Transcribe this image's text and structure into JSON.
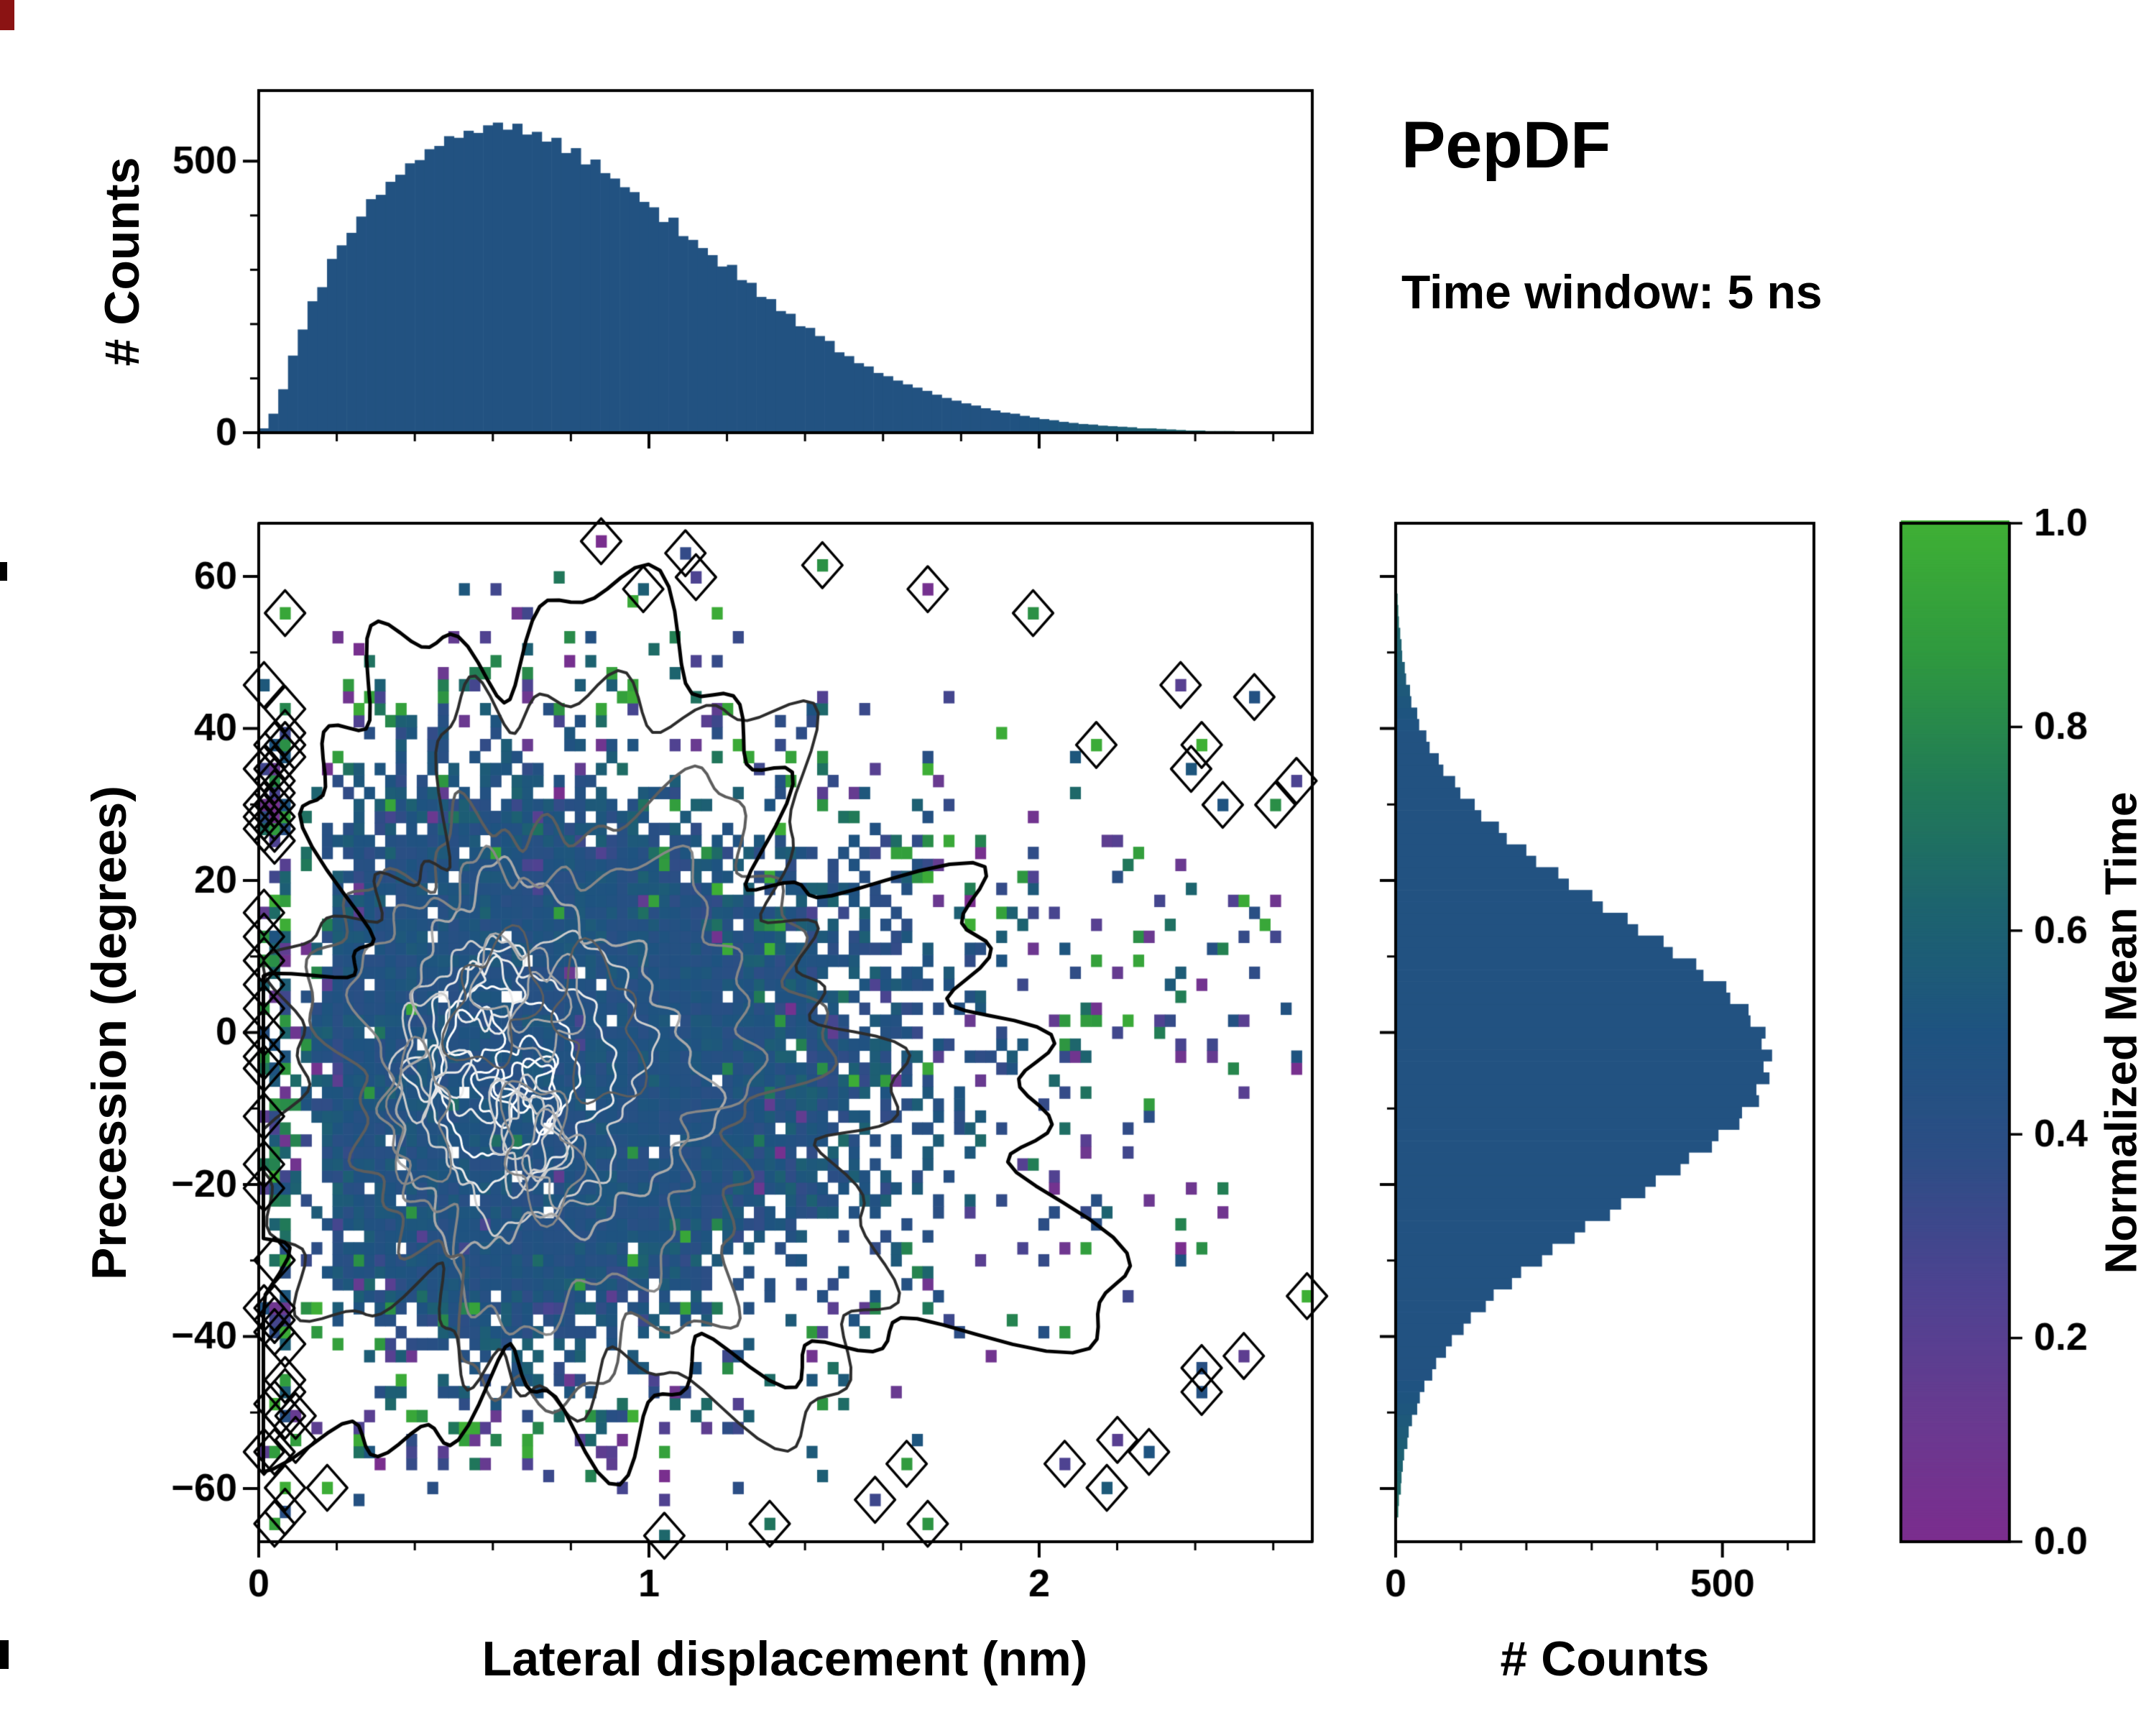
{
  "title": "PepDF",
  "subtitle": "Time window: 5 ns",
  "colors": {
    "histogram_bar": "#1e5280",
    "frame": "#000000",
    "text": "#000000",
    "background": "#ffffff"
  },
  "chart_data": [
    {
      "id": "top_histogram",
      "type": "bar",
      "title": "",
      "xlabel": "Lateral displacement (nm)",
      "ylabel": "# Counts",
      "xlim": [
        0,
        2.7
      ],
      "ylim": [
        0,
        630
      ],
      "xticks": [
        0,
        1,
        2
      ],
      "yticks": [
        0,
        500
      ],
      "bin_start": 0,
      "bin_width": 0.025,
      "values": [
        8,
        35,
        80,
        142,
        190,
        242,
        268,
        320,
        345,
        368,
        398,
        430,
        438,
        462,
        475,
        496,
        502,
        522,
        528,
        546,
        543,
        556,
        552,
        566,
        571,
        558,
        569,
        549,
        554,
        536,
        543,
        515,
        524,
        494,
        503,
        478,
        468,
        452,
        443,
        425,
        415,
        388,
        396,
        362,
        355,
        340,
        327,
        306,
        309,
        281,
        276,
        250,
        246,
        224,
        219,
        196,
        193,
        178,
        169,
        148,
        141,
        128,
        122,
        110,
        104,
        96,
        89,
        83,
        77,
        70,
        64,
        59,
        54,
        50,
        45,
        41,
        37,
        35,
        31,
        28,
        25,
        23,
        20,
        18,
        16,
        15,
        13,
        12,
        11,
        10,
        8,
        8,
        7,
        6,
        5,
        4,
        4,
        3,
        3,
        3,
        2,
        2,
        2,
        2,
        1,
        1,
        1,
        1
      ]
    },
    {
      "id": "joint_heatmap",
      "type": "heatmap",
      "xlabel": "Lateral displacement (nm)",
      "ylabel": "Precession (degrees)",
      "xlim": [
        0,
        2.7
      ],
      "ylim": [
        -67,
        67
      ],
      "xticks": [
        0,
        1,
        2
      ],
      "yticks": [
        -60,
        -40,
        -20,
        0,
        20,
        40,
        60
      ],
      "center": [
        0.62,
        -5
      ],
      "spread": [
        0.55,
        23
      ],
      "grid": [
        100,
        85
      ],
      "seed": 1234,
      "mean_value": 0.47,
      "colormap": [
        [
          0.0,
          "#7b2d8e"
        ],
        [
          0.12,
          "#693a90"
        ],
        [
          0.25,
          "#4d4391"
        ],
        [
          0.38,
          "#2c4e85"
        ],
        [
          0.5,
          "#1e5380"
        ],
        [
          0.62,
          "#1d636f"
        ],
        [
          0.74,
          "#217a57"
        ],
        [
          0.87,
          "#2f993f"
        ],
        [
          1.0,
          "#3fb035"
        ]
      ],
      "contour_colors": [
        "#ffffff",
        "#ebebeb",
        "#cdcdcd",
        "#a9a9a9",
        "#878787",
        "#5d5d5d",
        "#2c2c2c",
        "#000000"
      ]
    },
    {
      "id": "right_histogram",
      "type": "bar_horizontal",
      "title": "",
      "xlabel": "# Counts",
      "ylabel": "Precession (degrees)",
      "xlim": [
        0,
        640
      ],
      "ylim": [
        -67,
        67
      ],
      "xticks": [
        0,
        500
      ],
      "yticks": [
        -60,
        -40,
        -20,
        0,
        20,
        40,
        60
      ],
      "bin_start": -63.75,
      "bin_width": 1.5,
      "values": [
        4,
        5,
        8,
        9,
        11,
        13,
        18,
        20,
        25,
        33,
        37,
        44,
        56,
        62,
        77,
        86,
        104,
        115,
        138,
        150,
        178,
        192,
        224,
        240,
        274,
        290,
        328,
        345,
        382,
        398,
        436,
        449,
        484,
        494,
        526,
        530,
        556,
        552,
        572,
        563,
        576,
        560,
        566,
        543,
        540,
        512,
        506,
        471,
        460,
        424,
        410,
        371,
        355,
        317,
        301,
        265,
        249,
        215,
        200,
        170,
        158,
        131,
        121,
        99,
        91,
        73,
        66,
        52,
        47,
        36,
        33,
        24,
        22,
        16,
        14,
        10,
        9,
        7,
        5,
        4,
        3,
        2,
        2,
        1,
        1
      ]
    },
    {
      "id": "colorbar",
      "type": "colorbar",
      "label": "Normalized Mean Time",
      "range": [
        0,
        1
      ],
      "ticks": [
        0.0,
        0.2,
        0.4,
        0.6,
        0.8,
        1.0
      ]
    }
  ]
}
